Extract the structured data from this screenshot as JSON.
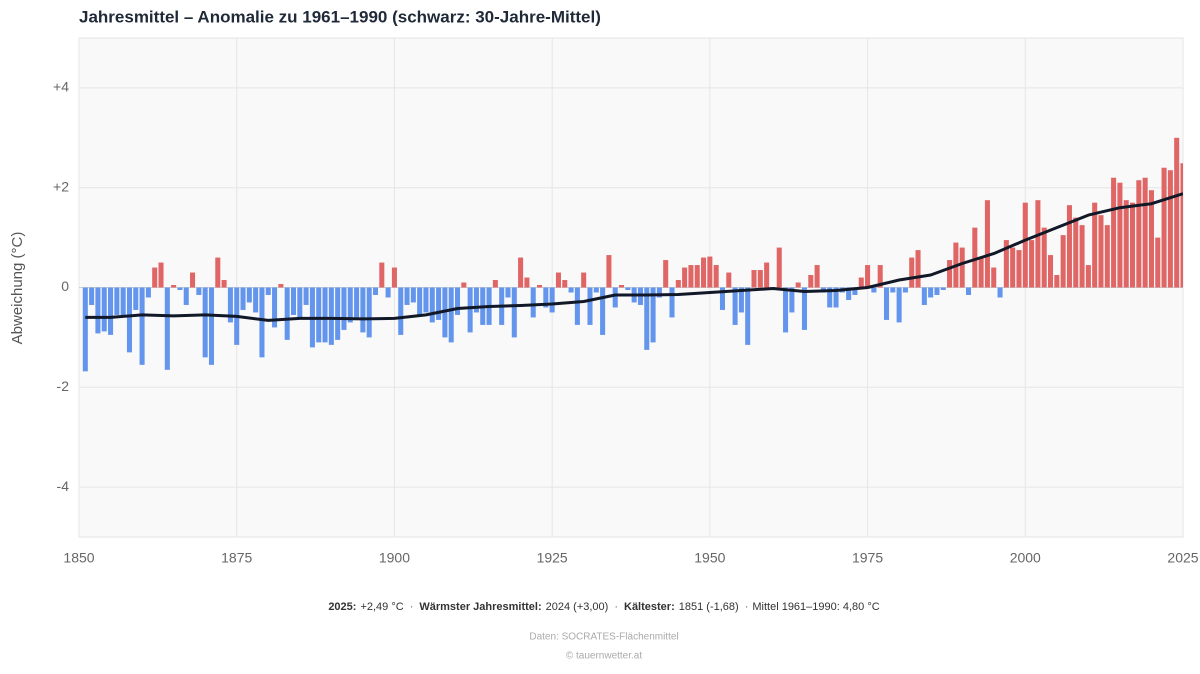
{
  "chart_data": {
    "type": "bar",
    "title": "Jahresmittel – Anomalie zu 1961–1990 (schwarz: 30-Jahre-Mittel)",
    "y_label": "Abweichung (°C)",
    "xlim": [
      1850,
      2025
    ],
    "xticks": [
      1850,
      1875,
      1900,
      1925,
      1950,
      1975,
      2000,
      2025
    ],
    "ylim": [
      -5,
      5
    ],
    "yticks": [
      {
        "value": -4,
        "label": "-4"
      },
      {
        "value": -2,
        "label": "-2"
      },
      0,
      {
        "value": 2,
        "label": "+2"
      },
      {
        "value": 4,
        "label": "+4"
      }
    ],
    "grid": true,
    "colors": {
      "positive": "#e06666",
      "negative": "#6495ed"
    },
    "x": [
      1851,
      1852,
      1853,
      1854,
      1855,
      1856,
      1857,
      1858,
      1859,
      1860,
      1861,
      1862,
      1863,
      1864,
      1865,
      1866,
      1867,
      1868,
      1869,
      1870,
      1871,
      1872,
      1873,
      1874,
      1875,
      1876,
      1877,
      1878,
      1879,
      1880,
      1881,
      1882,
      1883,
      1884,
      1885,
      1886,
      1887,
      1888,
      1889,
      1890,
      1891,
      1892,
      1893,
      1894,
      1895,
      1896,
      1897,
      1898,
      1899,
      1900,
      1901,
      1902,
      1903,
      1904,
      1905,
      1906,
      1907,
      1908,
      1909,
      1910,
      1911,
      1912,
      1913,
      1914,
      1915,
      1916,
      1917,
      1918,
      1919,
      1920,
      1921,
      1922,
      1923,
      1924,
      1925,
      1926,
      1927,
      1928,
      1929,
      1930,
      1931,
      1932,
      1933,
      1934,
      1935,
      1936,
      1937,
      1938,
      1939,
      1940,
      1941,
      1942,
      1943,
      1944,
      1945,
      1946,
      1947,
      1948,
      1949,
      1950,
      1951,
      1952,
      1953,
      1954,
      1955,
      1956,
      1957,
      1958,
      1959,
      1960,
      1961,
      1962,
      1963,
      1964,
      1965,
      1966,
      1967,
      1968,
      1969,
      1970,
      1971,
      1972,
      1973,
      1974,
      1975,
      1976,
      1977,
      1978,
      1979,
      1980,
      1981,
      1982,
      1983,
      1984,
      1985,
      1986,
      1987,
      1988,
      1989,
      1990,
      1991,
      1992,
      1993,
      1994,
      1995,
      1996,
      1997,
      1998,
      1999,
      2000,
      2001,
      2002,
      2003,
      2004,
      2005,
      2006,
      2007,
      2008,
      2009,
      2010,
      2011,
      2012,
      2013,
      2014,
      2015,
      2016,
      2017,
      2018,
      2019,
      2020,
      2021,
      2022,
      2023,
      2024,
      2025
    ],
    "values": [
      -1.68,
      -0.35,
      -0.92,
      -0.88,
      -0.95,
      -0.55,
      -0.6,
      -1.3,
      -0.45,
      -1.55,
      -0.2,
      0.4,
      0.5,
      -1.65,
      0.05,
      -0.05,
      -0.35,
      0.3,
      -0.15,
      -1.4,
      -1.55,
      0.6,
      0.15,
      -0.7,
      -1.15,
      -0.45,
      -0.3,
      -0.5,
      -1.4,
      -0.15,
      -0.8,
      0.07,
      -1.05,
      -0.55,
      -0.6,
      -0.35,
      -1.2,
      -1.1,
      -1.1,
      -1.15,
      -1.05,
      -0.85,
      -0.7,
      -0.6,
      -0.9,
      -1.0,
      -0.15,
      0.5,
      -0.2,
      0.4,
      -0.95,
      -0.35,
      -0.3,
      -0.55,
      -0.5,
      -0.7,
      -0.65,
      -1.0,
      -1.1,
      -0.55,
      0.1,
      -0.9,
      -0.5,
      -0.75,
      -0.75,
      0.15,
      -0.75,
      -0.2,
      -1.0,
      0.6,
      0.2,
      -0.6,
      0.05,
      -0.4,
      -0.5,
      0.3,
      0.15,
      -0.1,
      -0.75,
      0.3,
      -0.75,
      -0.1,
      -0.95,
      0.65,
      -0.4,
      0.05,
      -0.05,
      -0.3,
      -0.35,
      -1.25,
      -1.1,
      -0.2,
      0.55,
      -0.6,
      0.15,
      0.4,
      0.45,
      0.45,
      0.6,
      0.62,
      0.45,
      -0.45,
      0.3,
      -0.75,
      -0.5,
      -1.15,
      0.35,
      0.35,
      0.5,
      0.0,
      0.8,
      -0.9,
      -0.5,
      0.1,
      -0.85,
      0.25,
      0.45,
      -0.1,
      -0.4,
      -0.4,
      -0.1,
      -0.25,
      -0.15,
      0.2,
      0.45,
      -0.1,
      0.45,
      -0.65,
      -0.1,
      -0.7,
      -0.1,
      0.6,
      0.75,
      -0.35,
      -0.2,
      -0.15,
      -0.05,
      0.55,
      0.9,
      0.8,
      -0.15,
      1.2,
      0.6,
      1.75,
      0.4,
      -0.2,
      0.95,
      0.8,
      0.75,
      1.7,
      0.95,
      1.75,
      1.2,
      0.65,
      0.25,
      1.05,
      1.65,
      1.4,
      1.25,
      0.45,
      1.7,
      1.45,
      1.25,
      2.2,
      2.1,
      1.75,
      1.7,
      2.15,
      2.2,
      1.95,
      1.0,
      2.4,
      2.35,
      3.0,
      2.49
    ],
    "mean_line": {
      "color": "#111827",
      "x": [
        1851,
        1855,
        1860,
        1865,
        1870,
        1875,
        1880,
        1885,
        1890,
        1895,
        1900,
        1905,
        1910,
        1915,
        1920,
        1925,
        1930,
        1935,
        1940,
        1945,
        1950,
        1955,
        1960,
        1965,
        1970,
        1975,
        1980,
        1985,
        1990,
        1995,
        2000,
        2005,
        2010,
        2015,
        2020,
        2025
      ],
      "values": [
        -0.6,
        -0.6,
        -0.55,
        -0.57,
        -0.55,
        -0.58,
        -0.66,
        -0.62,
        -0.62,
        -0.63,
        -0.62,
        -0.55,
        -0.42,
        -0.38,
        -0.36,
        -0.33,
        -0.28,
        -0.15,
        -0.15,
        -0.14,
        -0.1,
        -0.06,
        -0.02,
        -0.08,
        -0.06,
        0.0,
        0.15,
        0.25,
        0.48,
        0.68,
        0.95,
        1.2,
        1.45,
        1.6,
        1.68,
        1.88
      ]
    }
  },
  "footer": {
    "items": [
      {
        "label": "2025:",
        "text": "+2,49 °C"
      },
      {
        "label": "Wärmster Jahresmittel:",
        "text": "2024 (+3,00)"
      },
      {
        "label": "Kältester:",
        "text": "1851 (-1,68)"
      },
      {
        "text": "Mittel 1961–1990: 4,80 °C"
      }
    ],
    "separator": "·",
    "source": "Daten: SOCRATES-Flächenmittel",
    "copyright": "© tauernwetter.at"
  }
}
